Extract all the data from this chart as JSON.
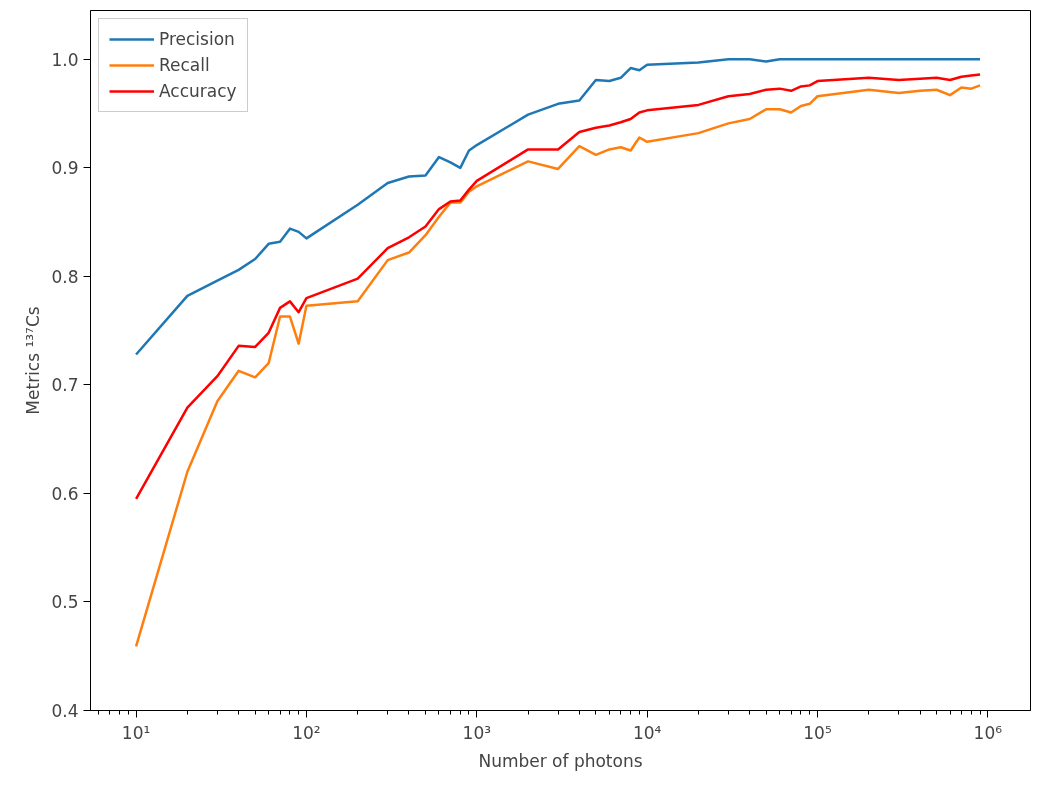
{
  "chart_data": {
    "type": "line",
    "xlabel": "Number of photons",
    "ylabel": "Metrics ¹³⁷Cs",
    "log": "x",
    "grid": false,
    "legend": "top left",
    "x": [
      10,
      20,
      30,
      40,
      50,
      60,
      70,
      80,
      90,
      100,
      200,
      300,
      400,
      500,
      600,
      700,
      800,
      900,
      1000,
      2000,
      3000,
      4000,
      5000,
      6000,
      7000,
      8000,
      9000,
      10000,
      20000,
      30000,
      40000,
      50000,
      60000,
      70000,
      80000,
      90000,
      100000,
      200000,
      300000,
      400000,
      500000,
      600000,
      700000,
      800000,
      900000
    ],
    "series": [
      {
        "name": "Precision",
        "color": "#1f77b4",
        "values": [
          0.728,
          0.782,
          0.796,
          0.806,
          0.816,
          0.83,
          0.832,
          0.844,
          0.841,
          0.835,
          0.866,
          0.886,
          0.892,
          0.893,
          0.91,
          0.905,
          0.9,
          0.916,
          0.921,
          0.949,
          0.959,
          0.962,
          0.981,
          0.98,
          0.983,
          0.992,
          0.99,
          0.995,
          0.997,
          1.0,
          1.0,
          0.998,
          1.0,
          1.0,
          1.0,
          1.0,
          1.0,
          1.0,
          1.0,
          1.0,
          1.0,
          1.0,
          1.0,
          1.0,
          1.0
        ]
      },
      {
        "name": "Recall",
        "color": "#ff7f0e",
        "values": [
          0.459,
          0.62,
          0.685,
          0.713,
          0.707,
          0.72,
          0.763,
          0.763,
          0.738,
          0.773,
          0.777,
          0.815,
          0.822,
          0.838,
          0.855,
          0.868,
          0.868,
          0.878,
          0.883,
          0.906,
          0.899,
          0.92,
          0.912,
          0.917,
          0.919,
          0.916,
          0.928,
          0.924,
          0.932,
          0.941,
          0.945,
          0.954,
          0.954,
          0.951,
          0.957,
          0.959,
          0.966,
          0.972,
          0.969,
          0.971,
          0.972,
          0.967,
          0.974,
          0.973,
          0.976
        ]
      },
      {
        "name": "Accuracy",
        "color": "#ff0000",
        "values": [
          0.595,
          0.679,
          0.708,
          0.736,
          0.735,
          0.748,
          0.771,
          0.777,
          0.767,
          0.78,
          0.798,
          0.826,
          0.836,
          0.846,
          0.862,
          0.869,
          0.87,
          0.88,
          0.888,
          0.917,
          0.917,
          0.933,
          0.937,
          0.939,
          0.942,
          0.945,
          0.951,
          0.953,
          0.958,
          0.966,
          0.968,
          0.972,
          0.973,
          0.971,
          0.975,
          0.976,
          0.98,
          0.983,
          0.981,
          0.982,
          0.983,
          0.981,
          0.984,
          0.985,
          0.986
        ]
      }
    ],
    "xlim": [
      5.4,
      1780000
    ],
    "ylim": [
      0.4,
      1.045
    ],
    "xticks": [
      {
        "value": 10,
        "label": "10¹"
      },
      {
        "value": 100,
        "label": "10²"
      },
      {
        "value": 1000,
        "label": "10³"
      },
      {
        "value": 10000,
        "label": "10⁴"
      },
      {
        "value": 100000,
        "label": "10⁵"
      },
      {
        "value": 1000000,
        "label": "10⁶"
      }
    ],
    "yticks": [
      {
        "value": 0.4,
        "label": "0.4"
      },
      {
        "value": 0.5,
        "label": "0.5"
      },
      {
        "value": 0.6,
        "label": "0.6"
      },
      {
        "value": 0.7,
        "label": "0.7"
      },
      {
        "value": 0.8,
        "label": "0.8"
      },
      {
        "value": 0.9,
        "label": "0.9"
      },
      {
        "value": 1.0,
        "label": "1.0"
      }
    ]
  }
}
